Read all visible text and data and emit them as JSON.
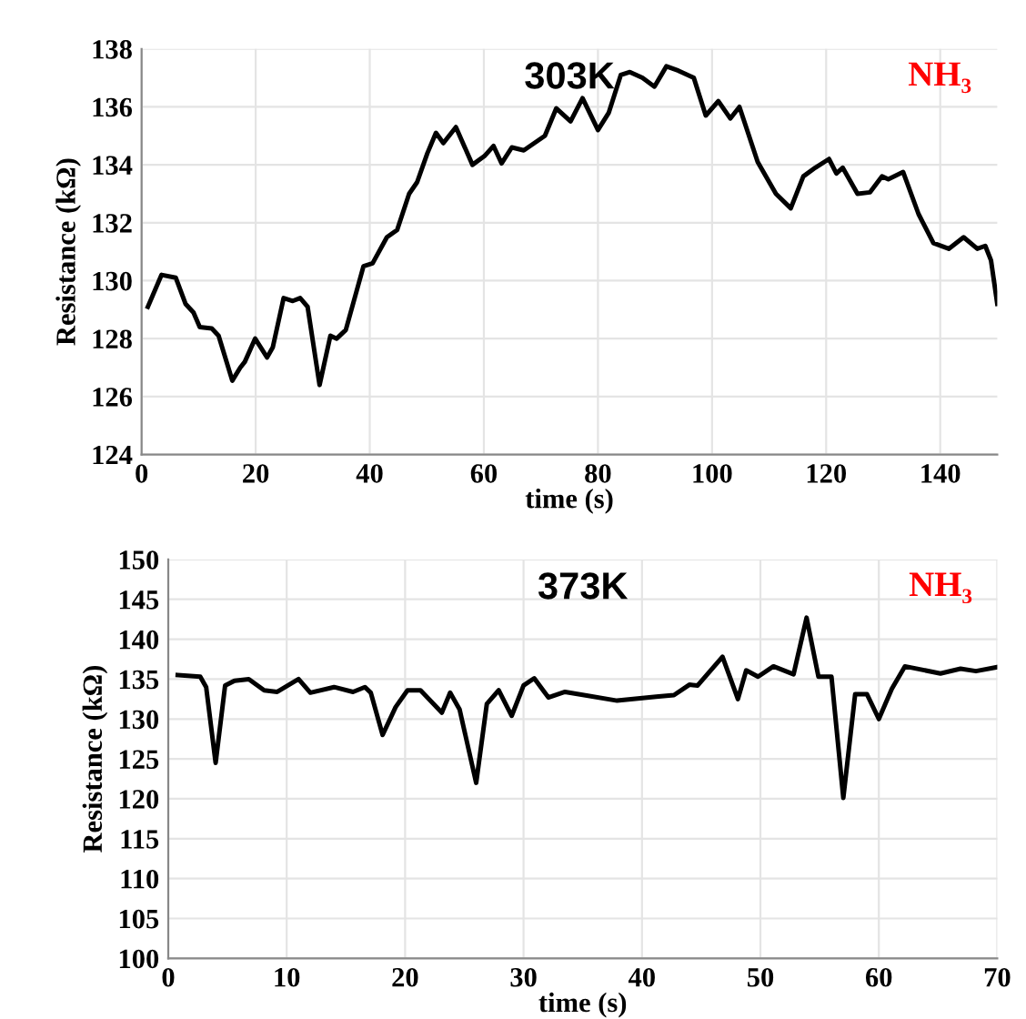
{
  "chart_data": [
    {
      "type": "line",
      "title": "303K",
      "xlabel": "time (s)",
      "ylabel": "Resistance (kΩ)",
      "annotations": [
        "NH₃"
      ],
      "xlim": [
        0,
        150
      ],
      "xticks": [
        0,
        20,
        40,
        60,
        80,
        100,
        120,
        140
      ],
      "ylim": [
        124,
        138
      ],
      "yticks": [
        124,
        126,
        128,
        130,
        132,
        134,
        136,
        138
      ],
      "grid": true,
      "legend": false,
      "marker": "none",
      "line_style": "solid",
      "series": [
        {
          "color": "#000000",
          "x": [
            1.1,
            3.5,
            6,
            7.7,
            9.1,
            10.2,
            12.3,
            13.5,
            15.9,
            17.3,
            18.1,
            19.9,
            22,
            23,
            24.9,
            26.5,
            27.8,
            29.1,
            31.2,
            33.1,
            34.2,
            35.8,
            38.9,
            40.5,
            43,
            44.8,
            46.9,
            48.3,
            50.1,
            51.6,
            52.9,
            55.1,
            58,
            60.1,
            61.7,
            63.1,
            64.9,
            67,
            70.7,
            72.7,
            75.2,
            77.3,
            80,
            81.9,
            84,
            85.6,
            87.8,
            89.9,
            92,
            94.1,
            96.8,
            98.9,
            101.1,
            103.2,
            104.8,
            108,
            111.2,
            113.8,
            116,
            118.1,
            120.5,
            121.8,
            122.9,
            125.5,
            127.7,
            129.8,
            130.9,
            133.5,
            136.2,
            138.8,
            141.5,
            144.1,
            146.5,
            147.9,
            148.9,
            150
          ],
          "values": [
            129.1,
            130.2,
            130.1,
            129.2,
            128.9,
            128.4,
            128.35,
            128.1,
            126.55,
            127,
            127.2,
            128,
            127.35,
            127.7,
            129.4,
            129.3,
            129.4,
            129.1,
            126.4,
            128.1,
            128,
            128.3,
            130.5,
            130.6,
            131.5,
            131.75,
            133,
            133.4,
            134.4,
            135.1,
            134.75,
            135.3,
            134,
            134.3,
            134.65,
            134.05,
            134.6,
            134.5,
            135,
            135.95,
            135.5,
            136.3,
            135.2,
            135.8,
            137.1,
            137.2,
            137,
            136.7,
            137.4,
            137.25,
            137,
            135.7,
            136.2,
            135.6,
            136,
            134.1,
            133,
            132.5,
            133.6,
            133.9,
            134.2,
            133.7,
            133.9,
            133,
            133.05,
            133.6,
            133.5,
            133.75,
            132.3,
            131.3,
            131.1,
            131.5,
            131.1,
            131.2,
            130.7,
            129.2
          ]
        }
      ]
    },
    {
      "type": "line",
      "title": "373K",
      "xlabel": "time (s)",
      "ylabel": "Resistance (kΩ)",
      "annotations": [
        "NH₃"
      ],
      "xlim": [
        0,
        70
      ],
      "xticks": [
        0,
        10,
        20,
        30,
        40,
        50,
        60,
        70
      ],
      "ylim": [
        100,
        150
      ],
      "yticks": [
        100,
        105,
        110,
        115,
        120,
        125,
        130,
        135,
        140,
        145,
        150
      ],
      "grid": true,
      "legend": false,
      "marker": "none",
      "line_style": "solid",
      "series": [
        {
          "color": "#000000",
          "x": [
            0.8,
            2.7,
            3.2,
            4,
            4.8,
            5.6,
            6.8,
            8.1,
            9.2,
            11,
            12,
            14,
            15.6,
            16.6,
            17.1,
            18.1,
            19.2,
            20.2,
            21.3,
            23.1,
            23.8,
            24.6,
            26,
            26.9,
            27.9,
            29,
            30,
            30.9,
            32.1,
            33.5,
            37.9,
            41.2,
            42.7,
            44,
            44.7,
            46.8,
            48.1,
            48.8,
            49.8,
            51.1,
            52.8,
            53.9,
            54.9,
            56,
            57,
            58,
            59,
            60,
            61.1,
            62.2,
            65.2,
            66.9,
            68.2,
            70
          ],
          "values": [
            135.5,
            135.3,
            134,
            124.5,
            134.2,
            134.8,
            135,
            133.6,
            133.4,
            135,
            133.3,
            134,
            133.4,
            134,
            133.3,
            128,
            131.5,
            133.6,
            133.6,
            130.8,
            133.3,
            131.2,
            122,
            131.9,
            133.6,
            130.4,
            134.2,
            135.1,
            132.7,
            133.4,
            132.3,
            132.8,
            133,
            134.3,
            134.2,
            137.8,
            132.5,
            136.1,
            135.3,
            136.6,
            135.6,
            142.7,
            135.3,
            135.3,
            120.1,
            133.1,
            133.1,
            130,
            133.8,
            136.6,
            135.7,
            136.3,
            136,
            136.5
          ]
        }
      ]
    }
  ]
}
